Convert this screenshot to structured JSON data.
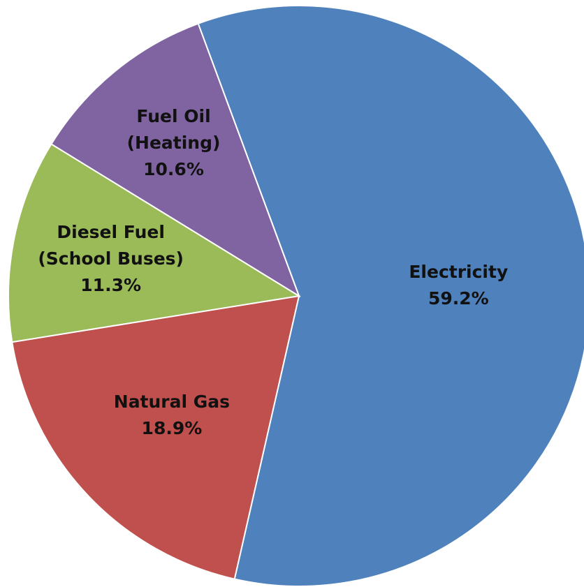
{
  "chart_data": {
    "type": "pie",
    "categories": [
      "Electricity",
      "Natural Gas",
      "Diesel Fuel (School Buses)",
      "Fuel Oil (Heating)"
    ],
    "values": [
      59.2,
      18.9,
      11.3,
      10.6
    ],
    "value_labels": [
      "59.2%",
      "18.9%",
      "11.3%",
      "10.6%"
    ],
    "colors": [
      "#4f81bd",
      "#c0504d",
      "#9bbb59",
      "#8064a2"
    ]
  }
}
